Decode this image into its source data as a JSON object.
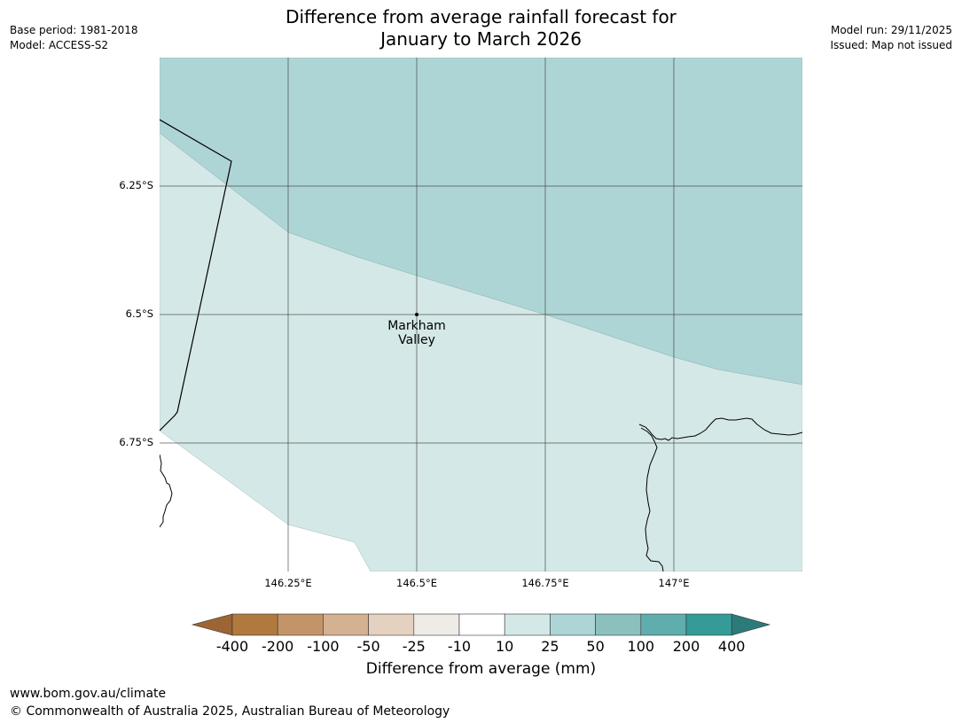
{
  "title_line1": "Difference from average rainfall forecast for",
  "title_line2": "January to March 2026",
  "meta_left": {
    "base_period": "Base period: 1981-2018",
    "model": "Model: ACCESS-S2"
  },
  "meta_right": {
    "model_run": "Model run: 29/11/2025",
    "issued": "Issued: Map not issued"
  },
  "lat_labels": [
    "6.25°S",
    "6.5°S",
    "6.75°S"
  ],
  "lon_labels": [
    "146.25°E",
    "146.5°E",
    "146.75°E",
    "147°E"
  ],
  "place": {
    "line1": "Markham",
    "line2": "Valley"
  },
  "colorbar": {
    "title": "Difference from average (mm)",
    "ticks": [
      "-400",
      "-200",
      "-100",
      "-50",
      "-25",
      "-10",
      "10",
      "25",
      "50",
      "100",
      "200",
      "400"
    ],
    "colors": [
      "#9c6533",
      "#b07a3f",
      "#c49469",
      "#d4b191",
      "#e5d1bf",
      "#efebe7",
      "#ffffff",
      "#d4e8e7",
      "#aed5d5",
      "#8bc0bf",
      "#5fadac",
      "#349b99",
      "#2b7b79"
    ]
  },
  "fill_colors": {
    "band_light": "#d4e8e7",
    "band_mid": "#aed5d5"
  },
  "footer": {
    "url": "www.bom.gov.au/climate",
    "copyright": "© Commonwealth of Australia 2025, Australian Bureau of Meteorology"
  }
}
